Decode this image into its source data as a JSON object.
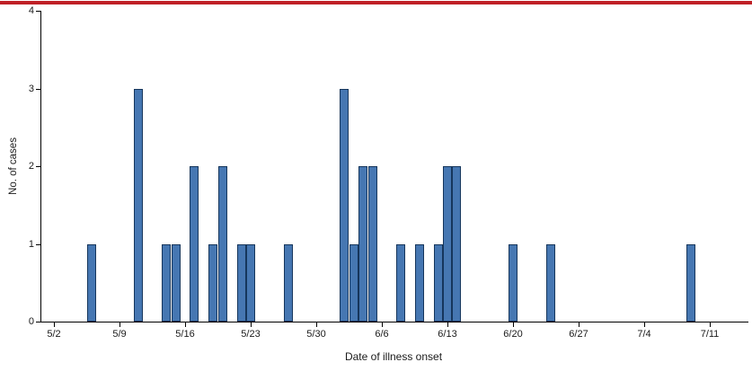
{
  "page": {
    "top_border_color": "#bf2026"
  },
  "chart_data": {
    "type": "bar",
    "title": "",
    "xlabel": "Date of illness onset",
    "ylabel": "No. of cases",
    "ylim": [
      0,
      4
    ],
    "yticks": [
      0,
      1,
      2,
      3,
      4
    ],
    "grid": false,
    "legend": "none",
    "bar_color": "#4677b2",
    "bar_border_color": "#16365c",
    "xticks": [
      {
        "label": "5/2",
        "day": 0
      },
      {
        "label": "5/9",
        "day": 7
      },
      {
        "label": "5/16",
        "day": 14
      },
      {
        "label": "5/23",
        "day": 21
      },
      {
        "label": "5/30",
        "day": 28
      },
      {
        "label": "6/6",
        "day": 35
      },
      {
        "label": "6/13",
        "day": 42
      },
      {
        "label": "6/20",
        "day": 49
      },
      {
        "label": "6/27",
        "day": 56
      },
      {
        "label": "7/4",
        "day": 63
      },
      {
        "label": "7/11",
        "day": 70
      }
    ],
    "bars": [
      {
        "date": "5/6",
        "day": 4,
        "cases": 1
      },
      {
        "date": "5/11",
        "day": 9,
        "cases": 3
      },
      {
        "date": "5/14",
        "day": 12,
        "cases": 1
      },
      {
        "date": "5/15",
        "day": 13,
        "cases": 1
      },
      {
        "date": "5/17",
        "day": 15,
        "cases": 2
      },
      {
        "date": "5/19",
        "day": 17,
        "cases": 1
      },
      {
        "date": "5/20",
        "day": 18,
        "cases": 2
      },
      {
        "date": "5/22",
        "day": 20,
        "cases": 1
      },
      {
        "date": "5/23",
        "day": 21,
        "cases": 1
      },
      {
        "date": "5/27",
        "day": 25,
        "cases": 1
      },
      {
        "date": "6/2",
        "day": 31,
        "cases": 3
      },
      {
        "date": "6/3",
        "day": 32,
        "cases": 1
      },
      {
        "date": "6/4",
        "day": 33,
        "cases": 2
      },
      {
        "date": "6/5",
        "day": 34,
        "cases": 2
      },
      {
        "date": "6/8",
        "day": 37,
        "cases": 1
      },
      {
        "date": "6/10",
        "day": 39,
        "cases": 1
      },
      {
        "date": "6/12",
        "day": 41,
        "cases": 1
      },
      {
        "date": "6/13",
        "day": 42,
        "cases": 2
      },
      {
        "date": "6/14",
        "day": 43,
        "cases": 2
      },
      {
        "date": "6/20",
        "day": 49,
        "cases": 1
      },
      {
        "date": "6/24",
        "day": 53,
        "cases": 1
      },
      {
        "date": "7/9",
        "day": 68,
        "cases": 1
      }
    ]
  }
}
